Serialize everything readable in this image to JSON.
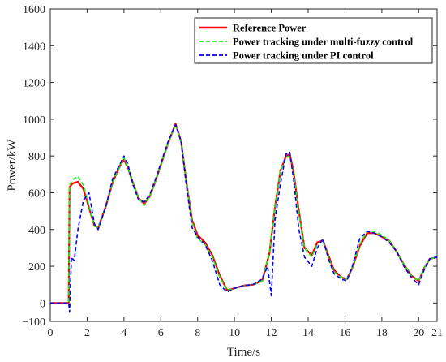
{
  "chart_data": {
    "type": "line",
    "title": "",
    "xlabel": "Time/s",
    "ylabel": "Power/kW",
    "xlim": [
      0,
      21
    ],
    "ylim": [
      -100,
      1600
    ],
    "xticks": [
      0,
      2,
      4,
      6,
      8,
      10,
      12,
      14,
      16,
      18,
      20,
      21
    ],
    "yticks": [
      -100,
      0,
      200,
      400,
      600,
      800,
      1000,
      1200,
      1400,
      1600
    ],
    "grid": false,
    "legend_position": "top-right",
    "series": [
      {
        "name": "Reference Power",
        "color": "#ff0000",
        "style": "solid",
        "x": [
          0,
          1,
          1.05,
          1.2,
          1.5,
          1.8,
          2.1,
          2.4,
          2.6,
          3.0,
          3.4,
          3.8,
          4.0,
          4.2,
          4.5,
          4.8,
          5.1,
          5.4,
          5.7,
          6.0,
          6.4,
          6.8,
          7.1,
          7.4,
          7.7,
          8.0,
          8.4,
          8.8,
          9.2,
          9.6,
          10.0,
          10.5,
          11.0,
          11.5,
          11.9,
          12.2,
          12.5,
          12.8,
          13.0,
          13.2,
          13.5,
          13.8,
          14.2,
          14.5,
          14.8,
          15.1,
          15.4,
          15.8,
          16.1,
          16.4,
          16.8,
          17.2,
          17.6,
          18.0,
          18.4,
          18.8,
          19.2,
          19.6,
          20.0,
          20.3,
          20.6,
          21.0
        ],
        "values": [
          0,
          0,
          630,
          650,
          660,
          620,
          520,
          420,
          410,
          520,
          660,
          750,
          780,
          740,
          650,
          570,
          540,
          580,
          660,
          750,
          870,
          975,
          880,
          650,
          450,
          370,
          330,
          260,
          150,
          70,
          80,
          95,
          100,
          120,
          270,
          520,
          720,
          800,
          810,
          720,
          500,
          300,
          260,
          330,
          340,
          260,
          180,
          140,
          130,
          190,
          310,
          380,
          380,
          360,
          340,
          280,
          210,
          150,
          120,
          190,
          240,
          250
        ]
      },
      {
        "name": "Power tracking under multi-fuzzy control",
        "color": "#00ff00",
        "style": "dashed",
        "x": [
          0,
          1,
          1.05,
          1.2,
          1.5,
          1.8,
          2.1,
          2.4,
          2.6,
          3.0,
          3.4,
          3.8,
          4.0,
          4.2,
          4.5,
          4.8,
          5.1,
          5.4,
          5.7,
          6.0,
          6.4,
          6.8,
          7.1,
          7.4,
          7.7,
          8.0,
          8.4,
          8.8,
          9.2,
          9.6,
          10.0,
          10.5,
          11.0,
          11.5,
          11.9,
          12.2,
          12.5,
          12.8,
          13.0,
          13.2,
          13.5,
          13.8,
          14.2,
          14.5,
          14.8,
          15.1,
          15.4,
          15.8,
          16.1,
          16.4,
          16.8,
          17.2,
          17.6,
          18.0,
          18.4,
          18.8,
          19.2,
          19.6,
          20.0,
          20.3,
          20.6,
          21.0
        ],
        "values": [
          0,
          0,
          640,
          670,
          690,
          640,
          530,
          420,
          410,
          520,
          660,
          750,
          790,
          740,
          650,
          570,
          530,
          580,
          660,
          750,
          870,
          970,
          880,
          650,
          440,
          350,
          320,
          250,
          140,
          70,
          80,
          95,
          100,
          120,
          270,
          520,
          720,
          790,
          800,
          710,
          490,
          300,
          250,
          320,
          340,
          250,
          170,
          140,
          130,
          190,
          320,
          390,
          390,
          370,
          340,
          280,
          210,
          150,
          120,
          190,
          240,
          250
        ]
      },
      {
        "name": "Power tracking under PI control",
        "color": "#0000ff",
        "style": "dashed",
        "x": [
          0,
          1,
          1.05,
          1.15,
          1.3,
          1.5,
          1.8,
          2.1,
          2.4,
          2.6,
          3.0,
          3.4,
          3.8,
          4.0,
          4.2,
          4.5,
          4.8,
          5.1,
          5.4,
          5.7,
          6.0,
          6.4,
          6.8,
          7.1,
          7.4,
          7.7,
          8.0,
          8.4,
          8.8,
          9.2,
          9.6,
          10.0,
          10.5,
          11.0,
          11.5,
          11.8,
          12.0,
          12.2,
          12.5,
          12.8,
          13.0,
          13.2,
          13.5,
          13.8,
          14.2,
          14.5,
          14.8,
          15.1,
          15.4,
          15.8,
          16.1,
          16.4,
          16.8,
          17.2,
          17.6,
          18.0,
          18.4,
          18.8,
          19.2,
          19.6,
          20.0,
          20.3,
          20.6,
          21.0
        ],
        "values": [
          0,
          0,
          -50,
          250,
          230,
          400,
          560,
          600,
          430,
          400,
          520,
          680,
          760,
          800,
          760,
          640,
          560,
          550,
          590,
          670,
          760,
          880,
          970,
          880,
          630,
          410,
          360,
          320,
          230,
          100,
          60,
          80,
          95,
          100,
          130,
          200,
          40,
          450,
          650,
          810,
          820,
          680,
          400,
          250,
          200,
          300,
          350,
          240,
          160,
          130,
          120,
          200,
          350,
          390,
          380,
          360,
          330,
          280,
          200,
          140,
          100,
          180,
          240,
          250
        ]
      }
    ]
  }
}
